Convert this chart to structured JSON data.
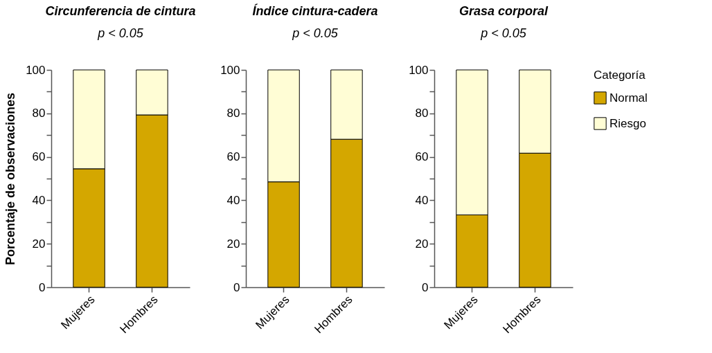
{
  "chart_data": [
    {
      "type": "bar",
      "stacked": true,
      "title": "Circunferencia de cintura",
      "ylabel": "Porcentaje de observaciones",
      "annotations": [
        "p < 0.05"
      ],
      "categories": [
        "Mujeres",
        "Hombres"
      ],
      "series": [
        {
          "color": "#d4a700",
          "values": [
            54.5,
            79.3
          ]
        },
        {
          "color": "#fffdd5",
          "values": [
            45.5,
            20.7
          ]
        }
      ],
      "ylim": [
        0,
        100
      ],
      "yticks": [
        0,
        {
          "value": 10,
          "label": null
        },
        20,
        {
          "value": 30,
          "label": null
        },
        40,
        {
          "value": 50,
          "label": null
        },
        60,
        {
          "value": 70,
          "label": null
        },
        80,
        {
          "value": 90,
          "label": null
        },
        100
      ]
    },
    {
      "type": "bar",
      "stacked": true,
      "title": "Índice cintura-cadera",
      "annotations": [
        "p < 0.05"
      ],
      "categories": [
        "Mujeres",
        "Hombres"
      ],
      "series": [
        {
          "color": "#d4a700",
          "values": [
            48.5,
            68.1
          ]
        },
        {
          "color": "#fffdd5",
          "values": [
            51.5,
            31.9
          ]
        }
      ],
      "ylim": [
        0,
        100
      ],
      "yticks": [
        0,
        {
          "value": 10,
          "label": null
        },
        20,
        {
          "value": 30,
          "label": null
        },
        40,
        {
          "value": 50,
          "label": null
        },
        60,
        {
          "value": 70,
          "label": null
        },
        80,
        {
          "value": 90,
          "label": null
        },
        100
      ]
    },
    {
      "type": "bar",
      "stacked": true,
      "title": "Grasa corporal",
      "annotations": [
        "p < 0.05"
      ],
      "legend": "top right",
      "legend_title": "Categoría",
      "categories": [
        "Mujeres",
        "Hombres"
      ],
      "series": [
        {
          "name": "Normal",
          "color": "#d4a700",
          "values": [
            33.3,
            61.7
          ]
        },
        {
          "name": "Riesgo",
          "color": "#fffdd5",
          "values": [
            66.7,
            38.3
          ]
        }
      ],
      "ylim": [
        0,
        100
      ],
      "yticks": [
        0,
        {
          "value": 10,
          "label": null
        },
        20,
        {
          "value": 30,
          "label": null
        },
        40,
        {
          "value": 50,
          "label": null
        },
        60,
        {
          "value": 70,
          "label": null
        },
        80,
        {
          "value": 90,
          "label": null
        },
        100
      ]
    }
  ]
}
